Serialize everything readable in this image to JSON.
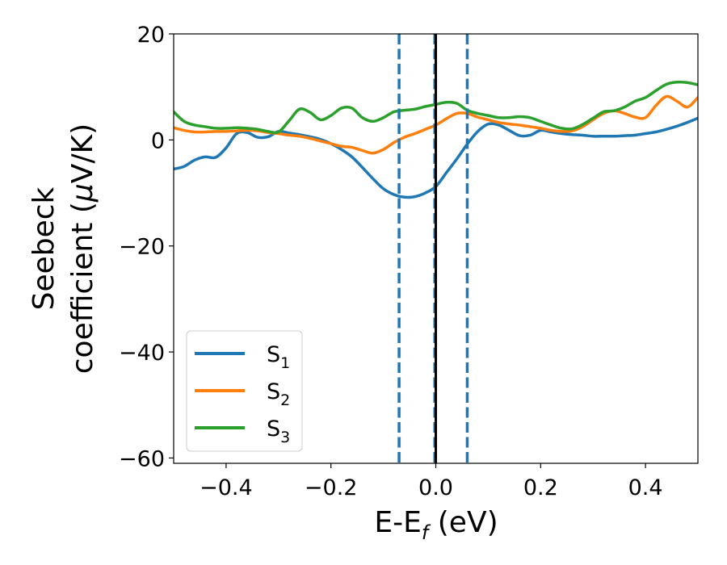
{
  "chart_data": {
    "type": "line",
    "xlabel": {
      "main": "E-E",
      "sub": "f",
      "unit": " (eV)"
    },
    "ylabel": {
      "line1": "Seebeck",
      "line2_prefix": "coefficient  (",
      "line2_mu": "μ",
      "line2_suffix": "V/K)"
    },
    "xlim": [
      -0.5,
      0.5
    ],
    "ylim": [
      -61,
      20
    ],
    "xticks": [
      -0.4,
      -0.2,
      0.0,
      0.2,
      0.4
    ],
    "xtick_labels": [
      "−0.4",
      "−0.2",
      "0.0",
      "0.2",
      "0.4"
    ],
    "yticks": [
      20,
      0,
      -20,
      -40,
      -60
    ],
    "ytick_labels": [
      "20",
      "0",
      "−20",
      "−40",
      "−60"
    ],
    "grid": false,
    "legend_position": "lower-left",
    "vlines": [
      {
        "x": -0.07,
        "style": "dashed",
        "color": "#1f77b4"
      },
      {
        "x": 0.06,
        "style": "dashed",
        "color": "#1f77b4"
      },
      {
        "x": -0.002,
        "style": "dashed",
        "color": "#1f77b4"
      },
      {
        "x": 0.0,
        "style": "solid",
        "color": "#000000"
      }
    ],
    "series": [
      {
        "name": "S",
        "sub": "1",
        "color": "#1f77b4",
        "x": [
          -0.5,
          -0.48,
          -0.46,
          -0.44,
          -0.42,
          -0.4,
          -0.38,
          -0.36,
          -0.34,
          -0.32,
          -0.3,
          -0.28,
          -0.26,
          -0.24,
          -0.22,
          -0.2,
          -0.18,
          -0.16,
          -0.14,
          -0.12,
          -0.1,
          -0.08,
          -0.06,
          -0.04,
          -0.02,
          0.0,
          0.02,
          0.04,
          0.06,
          0.08,
          0.1,
          0.12,
          0.14,
          0.16,
          0.18,
          0.2,
          0.22,
          0.24,
          0.26,
          0.28,
          0.3,
          0.32,
          0.34,
          0.36,
          0.38,
          0.4,
          0.42,
          0.44,
          0.46,
          0.48,
          0.5
        ],
        "values": [
          -5.5,
          -5,
          -3.8,
          -3.2,
          -3.3,
          -1.5,
          1.2,
          1.4,
          0.5,
          0.6,
          1.6,
          1.3,
          1.0,
          0.6,
          0.1,
          -0.7,
          -1.8,
          -3.2,
          -5.2,
          -7.3,
          -9.2,
          -10.3,
          -10.8,
          -10.7,
          -10,
          -8.8,
          -6.2,
          -3.6,
          -0.8,
          1.6,
          3.0,
          2.8,
          1.8,
          0.8,
          0.9,
          1.8,
          1.5,
          1.2,
          1.0,
          0.9,
          0.7,
          0.7,
          0.7,
          0.8,
          0.9,
          1.2,
          1.5,
          2.0,
          2.6,
          3.3,
          4.1
        ]
      },
      {
        "name": "S",
        "sub": "2",
        "color": "#ff7f0e",
        "x": [
          -0.5,
          -0.48,
          -0.46,
          -0.44,
          -0.42,
          -0.4,
          -0.38,
          -0.36,
          -0.34,
          -0.32,
          -0.3,
          -0.28,
          -0.26,
          -0.24,
          -0.22,
          -0.2,
          -0.18,
          -0.16,
          -0.14,
          -0.12,
          -0.1,
          -0.08,
          -0.06,
          -0.04,
          -0.02,
          0.0,
          0.02,
          0.04,
          0.06,
          0.08,
          0.1,
          0.12,
          0.14,
          0.16,
          0.18,
          0.2,
          0.22,
          0.24,
          0.26,
          0.28,
          0.3,
          0.32,
          0.34,
          0.36,
          0.38,
          0.4,
          0.42,
          0.44,
          0.46,
          0.48,
          0.5
        ],
        "values": [
          2.3,
          1.8,
          1.5,
          1.5,
          1.6,
          1.6,
          1.7,
          1.8,
          1.7,
          1.4,
          1.2,
          0.9,
          0.7,
          0.3,
          -0.2,
          -0.7,
          -1.2,
          -1.4,
          -2.0,
          -2.5,
          -1.8,
          -0.5,
          0.5,
          1.2,
          2.0,
          2.8,
          4.0,
          5.0,
          5.0,
          4.3,
          3.8,
          3.3,
          3.0,
          2.8,
          2.5,
          2.2,
          1.8,
          1.6,
          1.7,
          2.5,
          3.8,
          5.0,
          5.5,
          5.0,
          4.3,
          4.2,
          6.5,
          8.2,
          7.3,
          6.2,
          8.0
        ]
      },
      {
        "name": "S",
        "sub": "3",
        "color": "#2ca02c",
        "x": [
          -0.5,
          -0.48,
          -0.46,
          -0.44,
          -0.42,
          -0.4,
          -0.38,
          -0.36,
          -0.34,
          -0.32,
          -0.3,
          -0.28,
          -0.26,
          -0.24,
          -0.22,
          -0.2,
          -0.18,
          -0.16,
          -0.14,
          -0.12,
          -0.1,
          -0.08,
          -0.06,
          -0.04,
          -0.02,
          0.0,
          0.02,
          0.04,
          0.06,
          0.08,
          0.1,
          0.12,
          0.14,
          0.16,
          0.18,
          0.2,
          0.22,
          0.24,
          0.26,
          0.28,
          0.3,
          0.32,
          0.34,
          0.36,
          0.38,
          0.4,
          0.42,
          0.44,
          0.46,
          0.48,
          0.5
        ],
        "values": [
          5.3,
          3.5,
          2.8,
          2.5,
          2.2,
          2.2,
          2.3,
          2.2,
          2.0,
          1.6,
          1.5,
          3.6,
          5.8,
          5.2,
          3.8,
          4.6,
          6.0,
          6.0,
          4.2,
          3.5,
          4.2,
          5.3,
          5.6,
          5.8,
          6.3,
          6.7,
          7.1,
          6.9,
          5.6,
          5.0,
          4.6,
          4.2,
          4.2,
          4.4,
          4.2,
          3.5,
          2.8,
          2.2,
          2.1,
          2.9,
          4.1,
          5.3,
          5.5,
          6.2,
          7.3,
          8.0,
          9.3,
          10.5,
          10.9,
          10.8,
          10.4
        ]
      }
    ]
  }
}
